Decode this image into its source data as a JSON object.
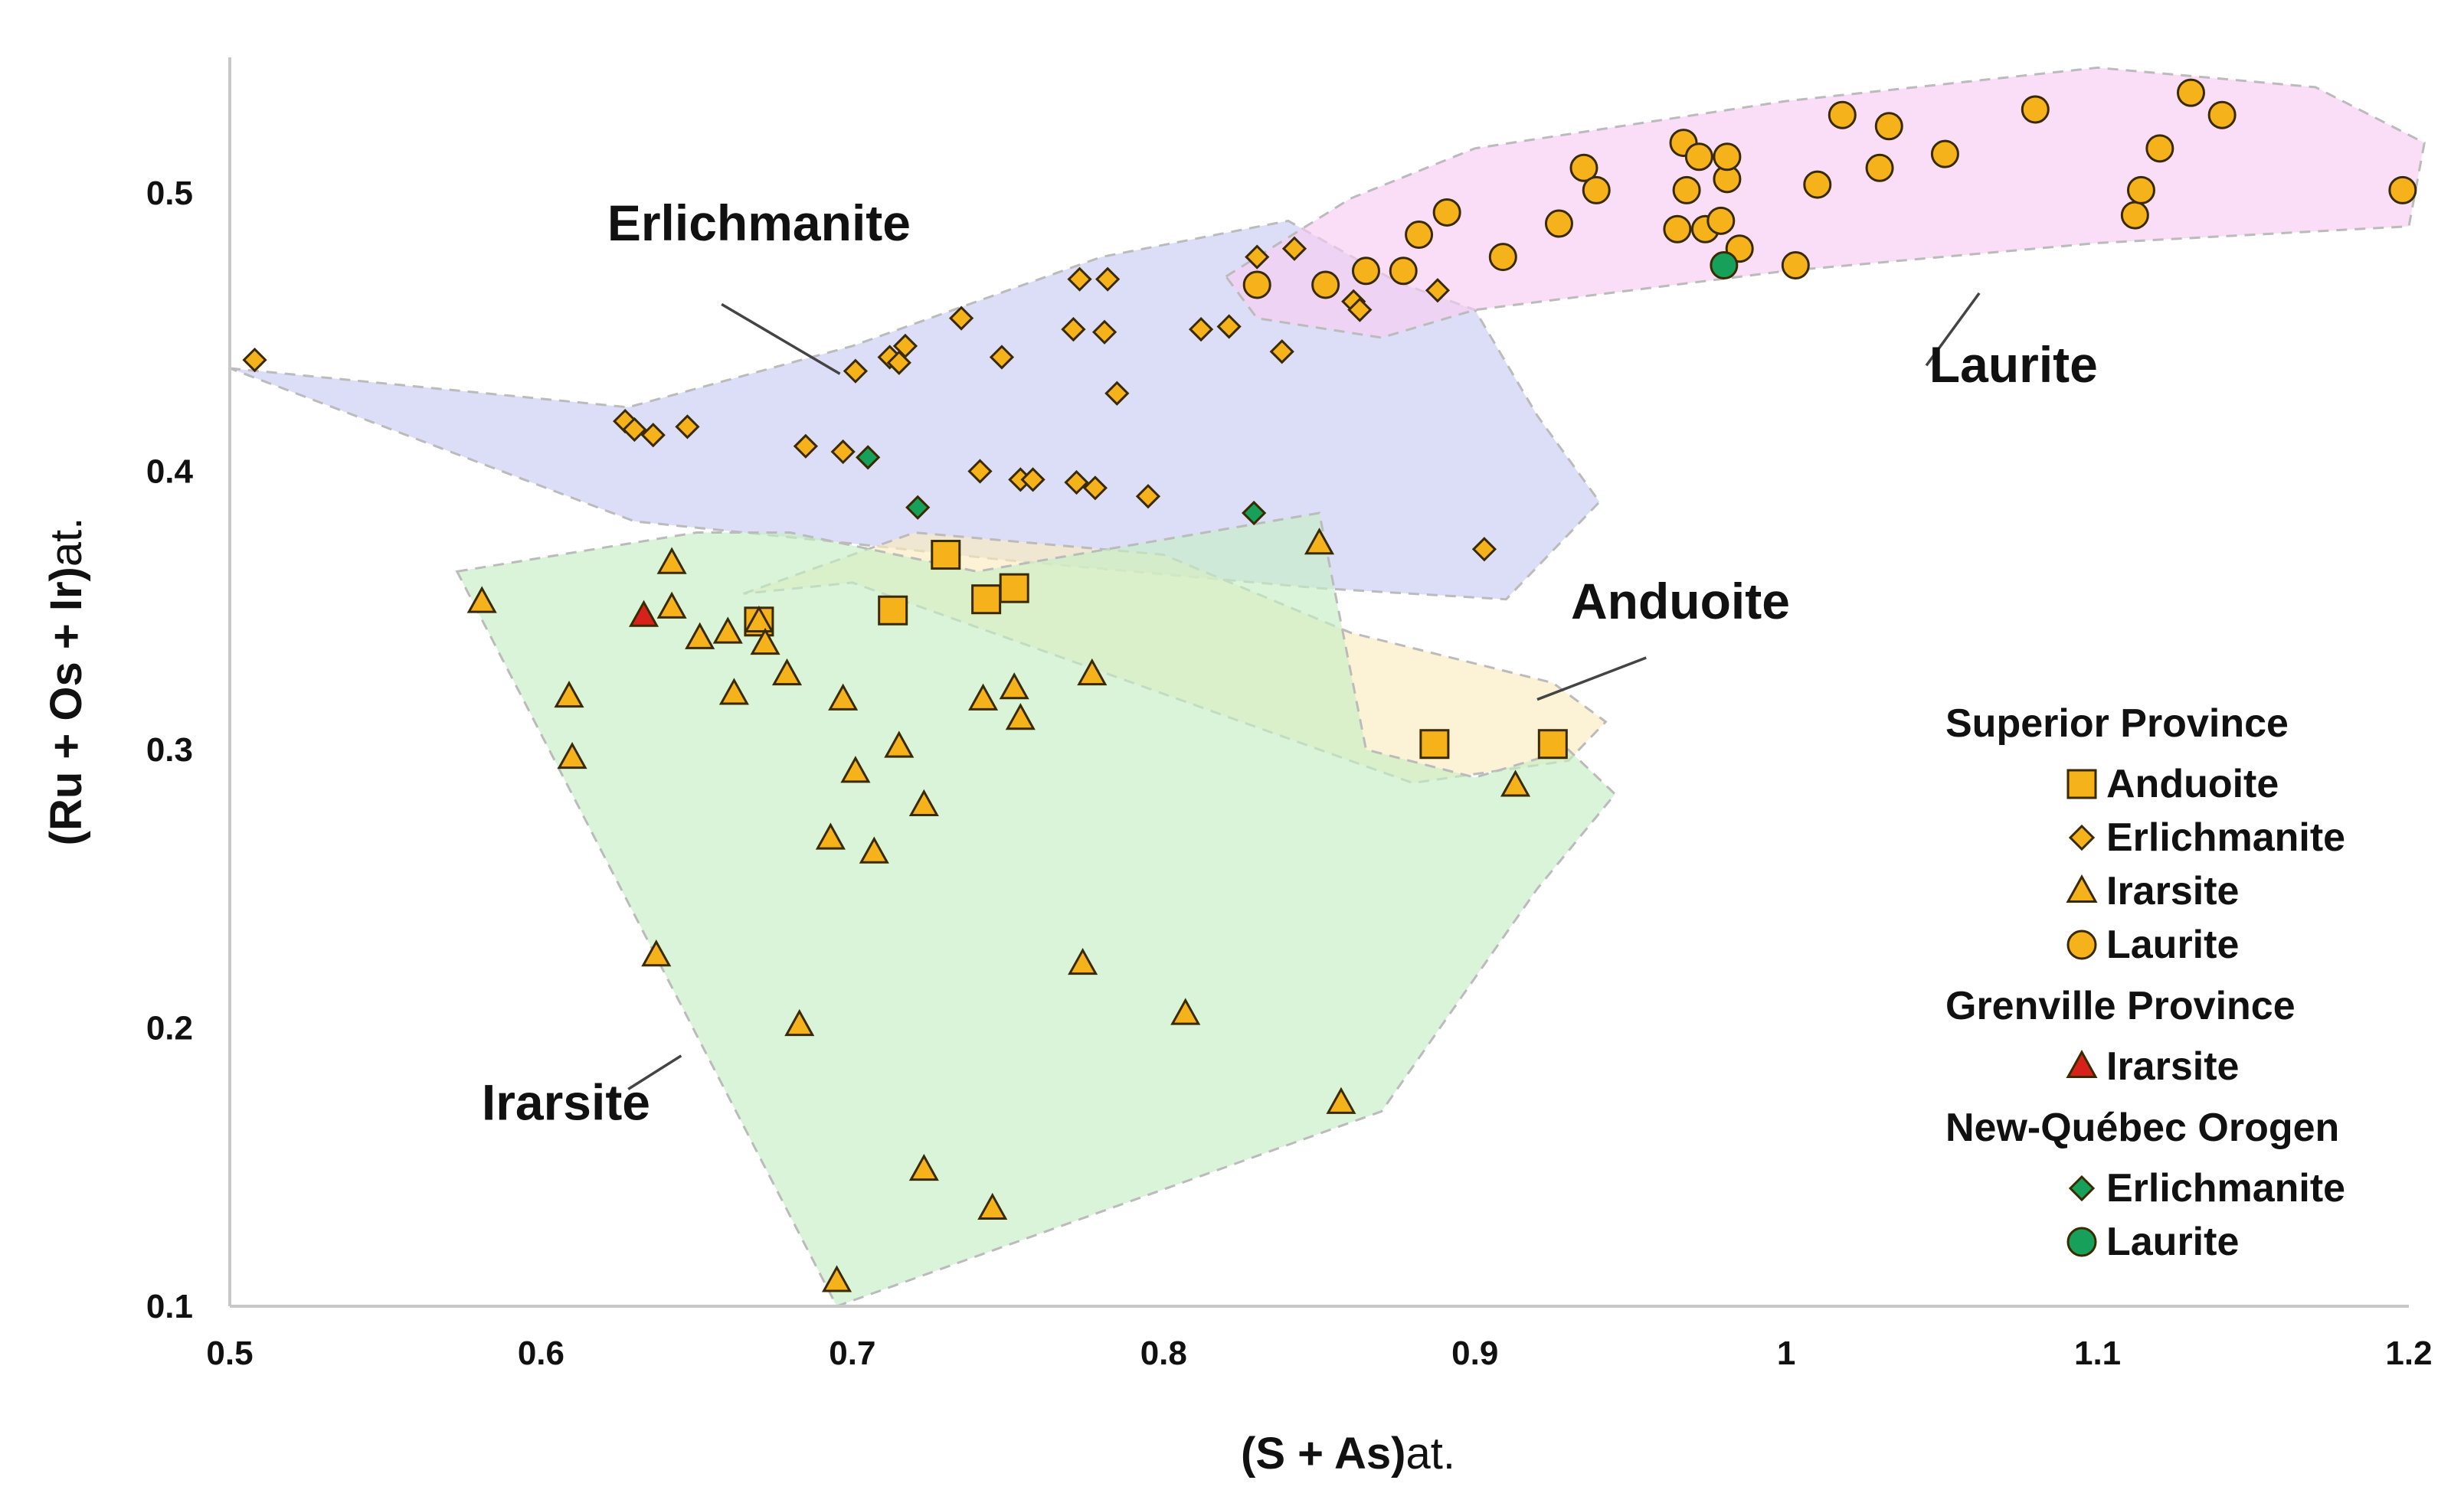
{
  "chart_data": {
    "type": "scatter",
    "xlabel": {
      "bold": "(S + As)",
      "normal": "at."
    },
    "ylabel": {
      "bold": "(Ru + Os + Ir)",
      "normal": "at."
    },
    "xlim": [
      0.5,
      1.2
    ],
    "ylim": [
      0.1,
      0.55
    ],
    "xticks": [
      0.5,
      0.6,
      0.7,
      0.8,
      0.9,
      1.0,
      1.1,
      1.2
    ],
    "xtick_labels": [
      "0.5",
      "0.6",
      "0.7",
      "0.8",
      "0.9",
      "1",
      "1.1",
      "1.2"
    ],
    "yticks": [
      0.1,
      0.2,
      0.3,
      0.4,
      0.5
    ],
    "ytick_labels": [
      "0.1",
      "0.2",
      "0.3",
      "0.4",
      "0.5"
    ],
    "grid": false,
    "legend_position": "bottom-right",
    "colors": {
      "orange": "#F5B21A",
      "red": "#D7221C",
      "green": "#16A05A",
      "edge": "#3a2a00",
      "field_erlichmanite": "#C9CCF3",
      "field_laurite": "#F7CDF3",
      "field_anduoite": "#FAEBBE",
      "field_irarsite": "#C6EEC6",
      "field_border": "#BBBBBB"
    },
    "fields": [
      {
        "name": "Erlichmanite",
        "color": "#C9CCF3",
        "polygon": [
          [
            0.5,
            0.437
          ],
          [
            0.628,
            0.423
          ],
          [
            0.7,
            0.445
          ],
          [
            0.78,
            0.477
          ],
          [
            0.84,
            0.49
          ],
          [
            0.875,
            0.468
          ],
          [
            0.9,
            0.458
          ],
          [
            0.92,
            0.42
          ],
          [
            0.94,
            0.389
          ],
          [
            0.91,
            0.354
          ],
          [
            0.85,
            0.358
          ],
          [
            0.75,
            0.368
          ],
          [
            0.7,
            0.374
          ],
          [
            0.63,
            0.382
          ],
          [
            0.5,
            0.437
          ]
        ]
      },
      {
        "name": "Laurite",
        "color": "#F7CDF3",
        "polygon": [
          [
            0.82,
            0.47
          ],
          [
            0.86,
            0.498
          ],
          [
            0.9,
            0.516
          ],
          [
            1.0,
            0.533
          ],
          [
            1.1,
            0.545
          ],
          [
            1.17,
            0.538
          ],
          [
            1.205,
            0.518
          ],
          [
            1.2,
            0.488
          ],
          [
            1.1,
            0.482
          ],
          [
            1.0,
            0.472
          ],
          [
            0.9,
            0.458
          ],
          [
            0.87,
            0.448
          ],
          [
            0.83,
            0.455
          ],
          [
            0.82,
            0.47
          ]
        ]
      },
      {
        "name": "Anduoite",
        "color": "#FAEBBE",
        "polygon": [
          [
            0.665,
            0.356
          ],
          [
            0.72,
            0.378
          ],
          [
            0.8,
            0.37
          ],
          [
            0.86,
            0.342
          ],
          [
            0.925,
            0.324
          ],
          [
            0.942,
            0.31
          ],
          [
            0.93,
            0.296
          ],
          [
            0.88,
            0.288
          ],
          [
            0.7,
            0.36
          ],
          [
            0.665,
            0.356
          ]
        ]
      },
      {
        "name": "Irarsite",
        "color": "#C6EEC6",
        "polygon": [
          [
            0.573,
            0.364
          ],
          [
            0.65,
            0.378
          ],
          [
            0.68,
            0.378
          ],
          [
            0.74,
            0.364
          ],
          [
            0.85,
            0.385
          ],
          [
            0.865,
            0.3
          ],
          [
            0.9,
            0.29
          ],
          [
            0.93,
            0.3
          ],
          [
            0.945,
            0.284
          ],
          [
            0.92,
            0.25
          ],
          [
            0.87,
            0.17
          ],
          [
            0.695,
            0.1
          ],
          [
            0.573,
            0.364
          ]
        ]
      }
    ],
    "field_labels": [
      {
        "text": "Erlichmanite",
        "x": 0.67,
        "y": 0.483,
        "leader": [
          [
            0.658,
            0.46
          ],
          [
            0.696,
            0.435
          ]
        ]
      },
      {
        "text": "Laurite",
        "x": 1.073,
        "y": 0.432,
        "leader": [
          [
            1.045,
            0.438
          ],
          [
            1.062,
            0.464
          ]
        ]
      },
      {
        "text": "Anduoite",
        "x": 0.966,
        "y": 0.347,
        "leader": [
          [
            0.955,
            0.333
          ],
          [
            0.92,
            0.318
          ]
        ]
      },
      {
        "text": "Irarsite",
        "x": 0.608,
        "y": 0.167,
        "leader": [
          [
            0.628,
            0.178
          ],
          [
            0.645,
            0.19
          ]
        ]
      }
    ],
    "series": [
      {
        "name": "Anduoite",
        "group": "Superior Province",
        "marker": "square",
        "color": "#F5B21A",
        "points": [
          [
            0.67,
            0.346
          ],
          [
            0.713,
            0.35
          ],
          [
            0.73,
            0.37
          ],
          [
            0.743,
            0.354
          ],
          [
            0.752,
            0.358
          ],
          [
            0.887,
            0.302
          ],
          [
            0.925,
            0.302
          ]
        ]
      },
      {
        "name": "Erlichmanite",
        "group": "Superior Province",
        "marker": "diamond",
        "color": "#F5B21A",
        "points": [
          [
            0.508,
            0.44
          ],
          [
            0.627,
            0.418
          ],
          [
            0.63,
            0.415
          ],
          [
            0.636,
            0.413
          ],
          [
            0.647,
            0.416
          ],
          [
            0.685,
            0.409
          ],
          [
            0.697,
            0.407
          ],
          [
            0.701,
            0.436
          ],
          [
            0.712,
            0.441
          ],
          [
            0.715,
            0.439
          ],
          [
            0.717,
            0.445
          ],
          [
            0.735,
            0.455
          ],
          [
            0.741,
            0.4
          ],
          [
            0.748,
            0.441
          ],
          [
            0.754,
            0.397
          ],
          [
            0.758,
            0.397
          ],
          [
            0.771,
            0.451
          ],
          [
            0.772,
            0.396
          ],
          [
            0.773,
            0.469
          ],
          [
            0.778,
            0.394
          ],
          [
            0.781,
            0.45
          ],
          [
            0.782,
            0.469
          ],
          [
            0.785,
            0.428
          ],
          [
            0.795,
            0.391
          ],
          [
            0.812,
            0.451
          ],
          [
            0.821,
            0.452
          ],
          [
            0.83,
            0.477
          ],
          [
            0.838,
            0.443
          ],
          [
            0.842,
            0.48
          ],
          [
            0.861,
            0.461
          ],
          [
            0.863,
            0.458
          ],
          [
            0.888,
            0.465
          ],
          [
            0.903,
            0.372
          ]
        ]
      },
      {
        "name": "Irarsite",
        "group": "Superior Province",
        "marker": "triangle",
        "color": "#F5B21A",
        "points": [
          [
            0.581,
            0.353
          ],
          [
            0.609,
            0.319
          ],
          [
            0.61,
            0.297
          ],
          [
            0.637,
            0.226
          ],
          [
            0.642,
            0.367
          ],
          [
            0.642,
            0.351
          ],
          [
            0.651,
            0.34
          ],
          [
            0.66,
            0.342
          ],
          [
            0.662,
            0.32
          ],
          [
            0.67,
            0.346
          ],
          [
            0.672,
            0.338
          ],
          [
            0.679,
            0.327
          ],
          [
            0.683,
            0.201
          ],
          [
            0.693,
            0.268
          ],
          [
            0.695,
            0.109
          ],
          [
            0.697,
            0.318
          ],
          [
            0.701,
            0.292
          ],
          [
            0.707,
            0.263
          ],
          [
            0.715,
            0.301
          ],
          [
            0.723,
            0.28
          ],
          [
            0.723,
            0.149
          ],
          [
            0.742,
            0.318
          ],
          [
            0.745,
            0.135
          ],
          [
            0.752,
            0.322
          ],
          [
            0.754,
            0.311
          ],
          [
            0.774,
            0.223
          ],
          [
            0.777,
            0.327
          ],
          [
            0.807,
            0.205
          ],
          [
            0.85,
            0.374
          ],
          [
            0.857,
            0.173
          ],
          [
            0.913,
            0.287
          ]
        ]
      },
      {
        "name": "Laurite",
        "group": "Superior Province",
        "marker": "circle",
        "color": "#F5B21A",
        "points": [
          [
            0.83,
            0.467
          ],
          [
            0.852,
            0.467
          ],
          [
            0.865,
            0.472
          ],
          [
            0.877,
            0.472
          ],
          [
            0.882,
            0.485
          ],
          [
            0.891,
            0.493
          ],
          [
            0.909,
            0.477
          ],
          [
            0.927,
            0.489
          ],
          [
            0.935,
            0.509
          ],
          [
            0.939,
            0.501
          ],
          [
            0.965,
            0.487
          ],
          [
            0.967,
            0.518
          ],
          [
            0.968,
            0.501
          ],
          [
            0.972,
            0.513
          ],
          [
            0.974,
            0.487
          ],
          [
            0.979,
            0.49
          ],
          [
            0.981,
            0.505
          ],
          [
            0.981,
            0.513
          ],
          [
            0.985,
            0.48
          ],
          [
            1.003,
            0.474
          ],
          [
            1.01,
            0.503
          ],
          [
            1.018,
            0.528
          ],
          [
            1.03,
            0.509
          ],
          [
            1.033,
            0.524
          ],
          [
            1.051,
            0.514
          ],
          [
            1.08,
            0.53
          ],
          [
            1.112,
            0.492
          ],
          [
            1.114,
            0.501
          ],
          [
            1.12,
            0.516
          ],
          [
            1.13,
            0.536
          ],
          [
            1.14,
            0.528
          ],
          [
            1.198,
            0.501
          ]
        ]
      },
      {
        "name": "Irarsite",
        "group": "Grenville Province",
        "marker": "triangle",
        "color": "#D7221C",
        "points": [
          [
            0.633,
            0.348
          ]
        ]
      },
      {
        "name": "Erlichmanite",
        "group": "New-Québec Orogen",
        "marker": "diamond",
        "color": "#16A05A",
        "points": [
          [
            0.705,
            0.405
          ],
          [
            0.721,
            0.387
          ],
          [
            0.829,
            0.385
          ]
        ]
      },
      {
        "name": "Laurite",
        "group": "New-Québec Orogen",
        "marker": "circle",
        "color": "#16A05A",
        "points": [
          [
            0.98,
            0.474
          ]
        ]
      }
    ],
    "legend": {
      "groups": [
        {
          "title": "Superior Province",
          "entries": [
            {
              "label": "Anduoite",
              "marker": "square",
              "color": "#F5B21A"
            },
            {
              "label": "Erlichmanite",
              "marker": "diamond",
              "color": "#F5B21A"
            },
            {
              "label": "Irarsite",
              "marker": "triangle",
              "color": "#F5B21A"
            },
            {
              "label": "Laurite",
              "marker": "circle",
              "color": "#F5B21A"
            }
          ]
        },
        {
          "title": "Grenville Province",
          "entries": [
            {
              "label": "Irarsite",
              "marker": "triangle",
              "color": "#D7221C"
            }
          ]
        },
        {
          "title": "New-Québec Orogen",
          "entries": [
            {
              "label": "Erlichmanite",
              "marker": "diamond",
              "color": "#16A05A"
            },
            {
              "label": "Laurite",
              "marker": "circle",
              "color": "#16A05A"
            }
          ]
        }
      ]
    }
  }
}
